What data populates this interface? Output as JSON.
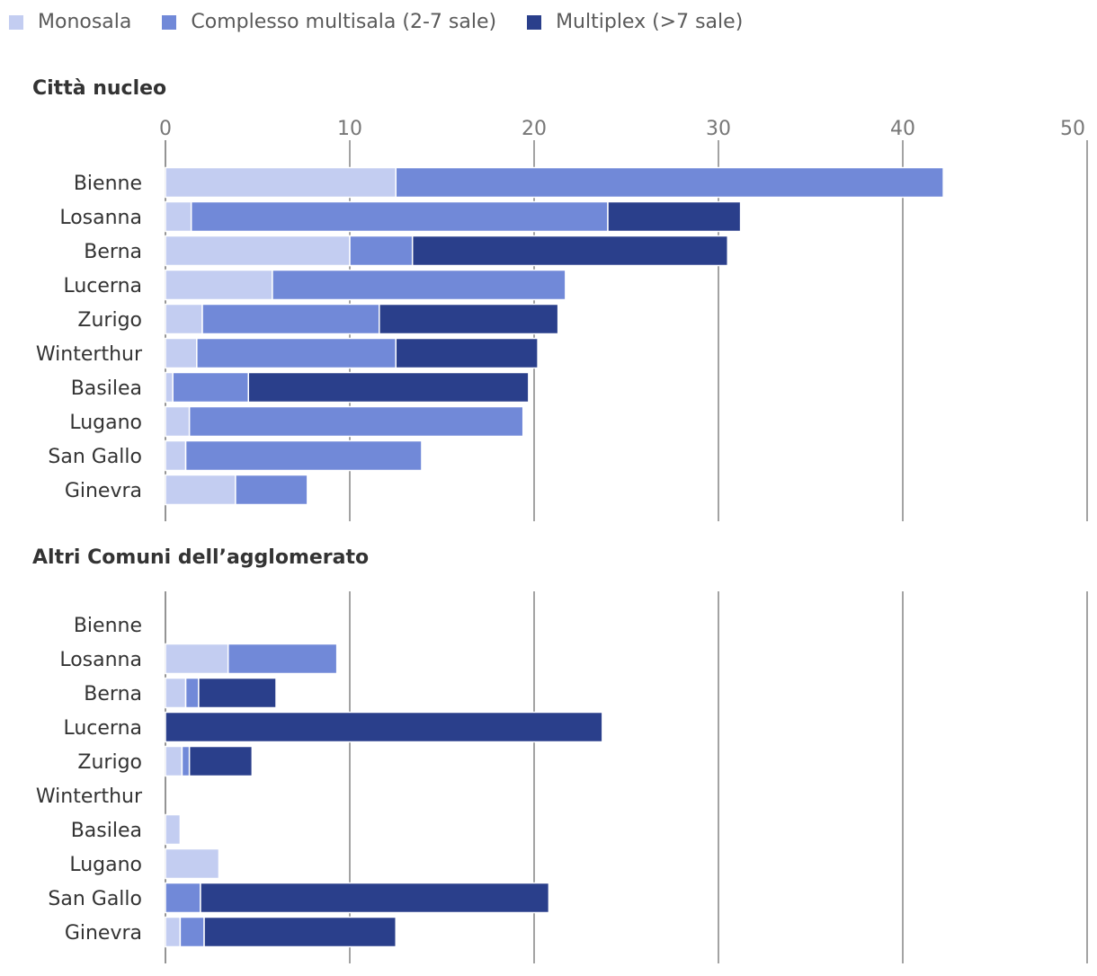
{
  "chart_data": {
    "type": "bar",
    "orientation": "horizontal",
    "stacked": true,
    "xlim": [
      0,
      50
    ],
    "ticks": [
      0,
      10,
      20,
      30,
      40,
      50
    ],
    "series": [
      {
        "name": "Monosala",
        "color": "#c3cdf1"
      },
      {
        "name": "Complesso multisala (2-7 sale)",
        "color": "#7189d8"
      },
      {
        "name": "Multiplex (>7 sale)",
        "color": "#2a3f8b"
      }
    ],
    "panels": [
      {
        "title": "Città nucleo",
        "categories": [
          "Bienne",
          "Losanna",
          "Berna",
          "Lucerna",
          "Zurigo",
          "Winterthur",
          "Basilea",
          "Lugano",
          "San Gallo",
          "Ginevra"
        ],
        "values": {
          "Monosala": [
            12.5,
            1.4,
            10.0,
            5.8,
            2.0,
            1.7,
            0.4,
            1.3,
            1.1,
            3.8
          ],
          "Complesso multisala (2-7 sale)": [
            29.7,
            22.6,
            3.4,
            15.9,
            9.6,
            10.8,
            4.1,
            18.1,
            12.8,
            3.9
          ],
          "Multiplex (>7 sale)": [
            0,
            7.2,
            17.1,
            0,
            9.7,
            7.7,
            15.2,
            0,
            0,
            0
          ]
        }
      },
      {
        "title": "Altri Comuni dell’agglomerato",
        "categories": [
          "Bienne",
          "Losanna",
          "Berna",
          "Lucerna",
          "Zurigo",
          "Winterthur",
          "Basilea",
          "Lugano",
          "San Gallo",
          "Ginevra"
        ],
        "values": {
          "Monosala": [
            0,
            3.4,
            1.1,
            0,
            0.9,
            0,
            0.8,
            2.9,
            0,
            0.8
          ],
          "Complesso multisala (2-7 sale)": [
            0,
            5.9,
            0.7,
            0,
            0.4,
            0,
            0,
            0,
            1.9,
            1.3
          ],
          "Multiplex (>7 sale)": [
            0,
            0,
            4.2,
            23.7,
            3.4,
            0,
            0,
            0,
            18.9,
            10.4
          ]
        }
      }
    ]
  }
}
